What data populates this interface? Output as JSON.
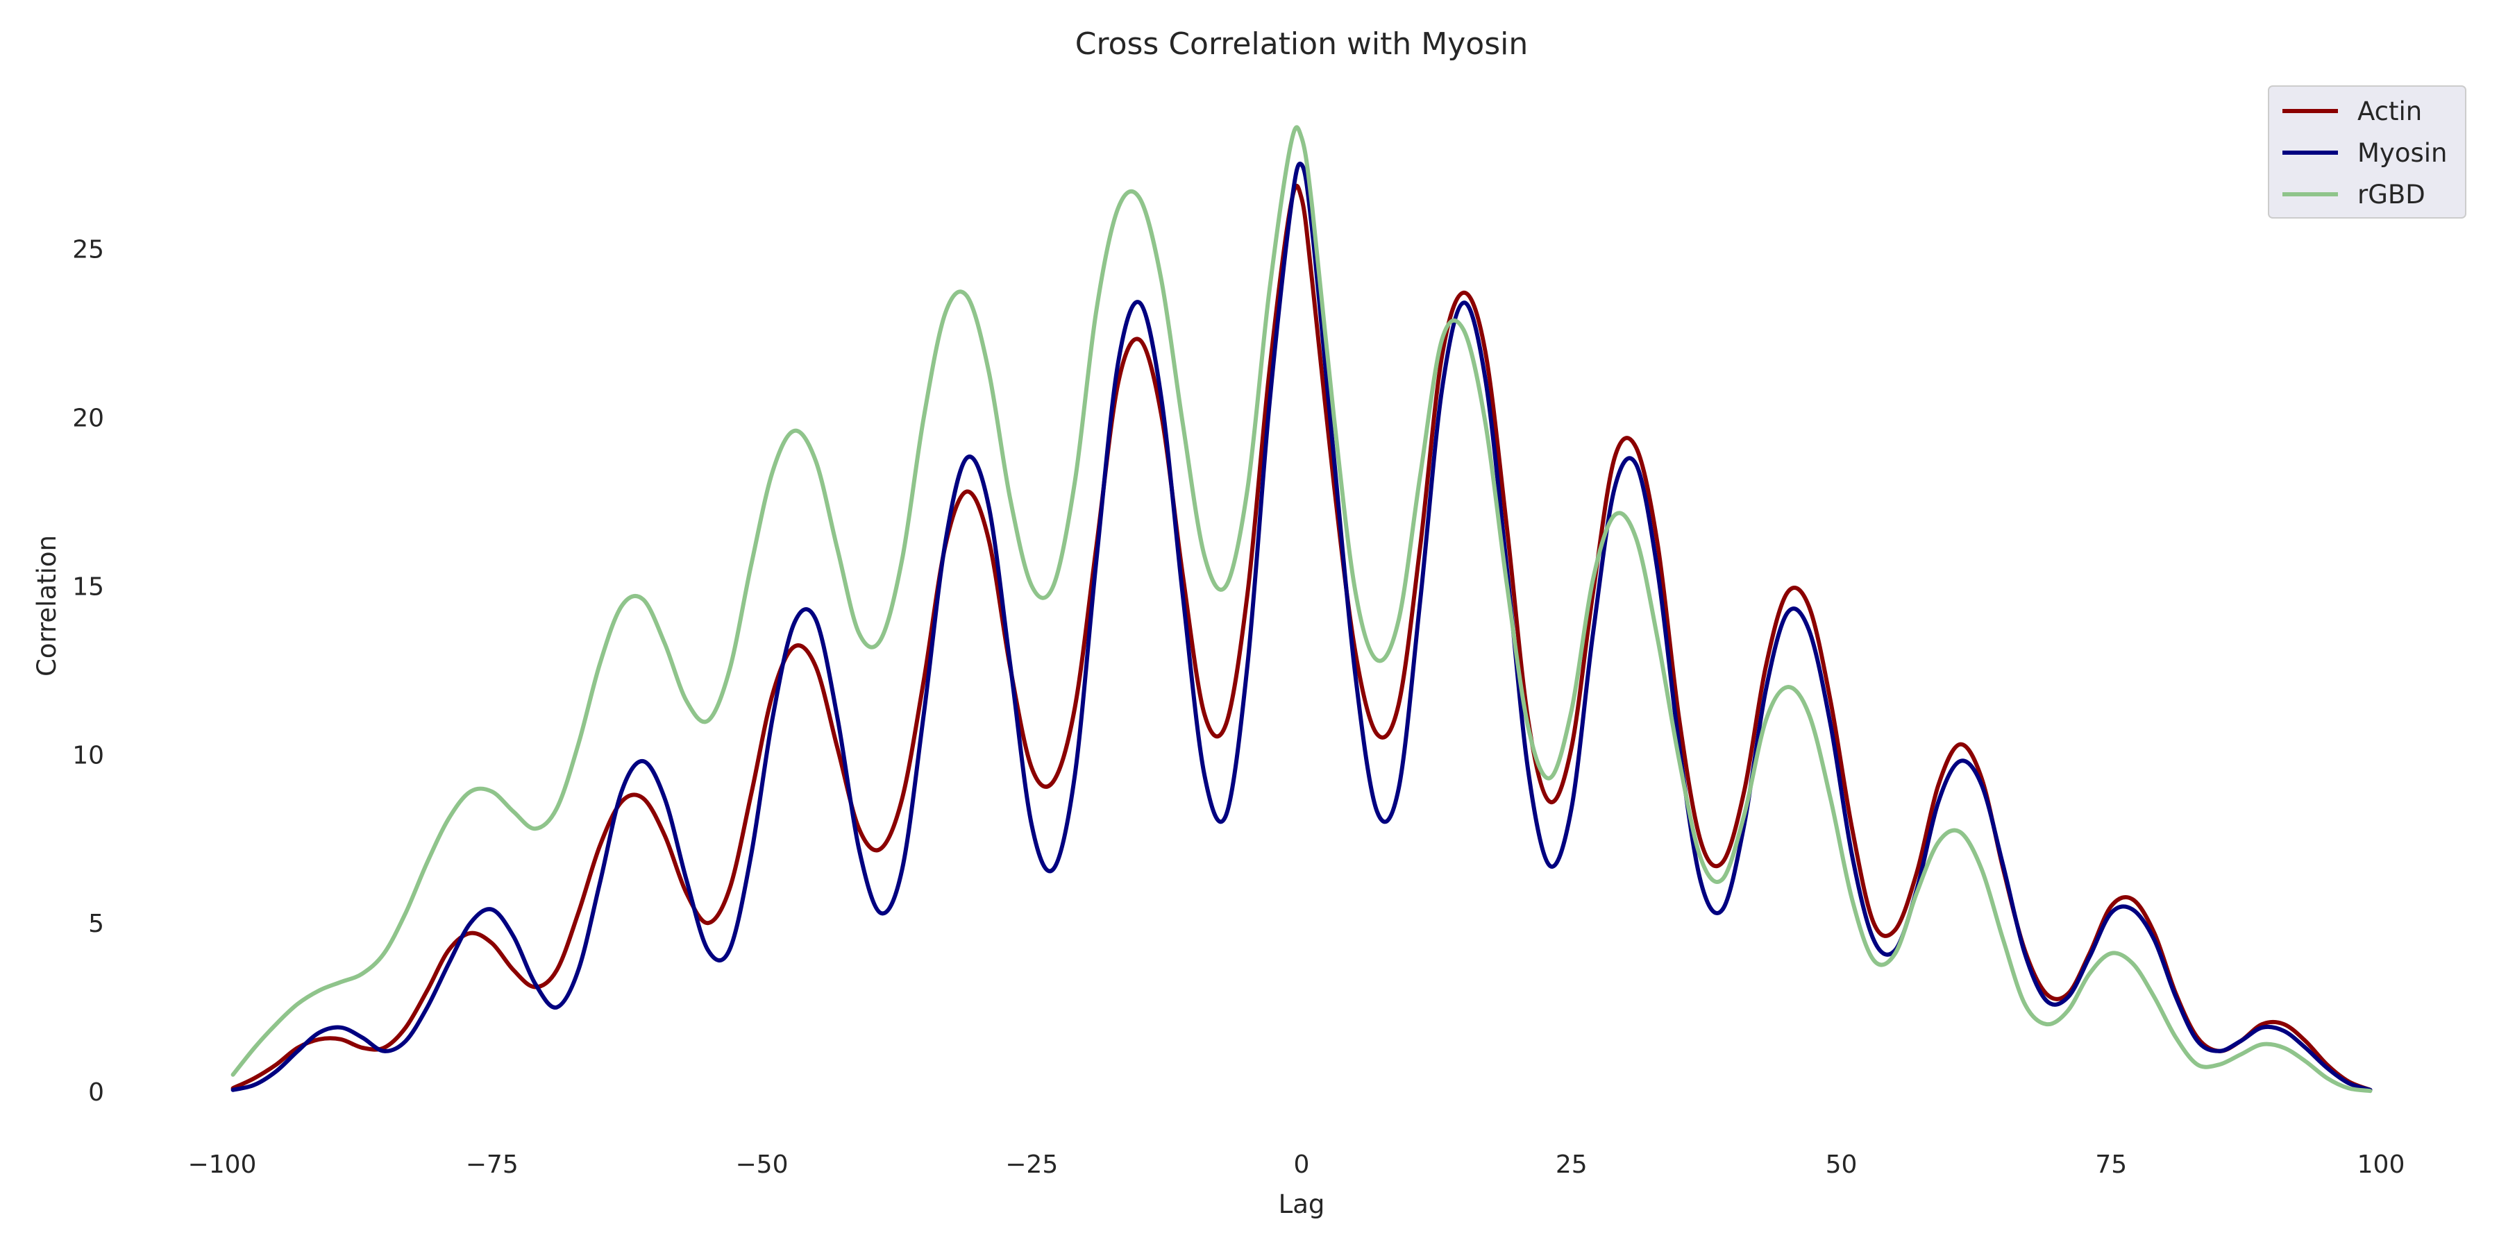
{
  "chart_data": {
    "type": "line",
    "title": "Cross Correlation with Myosin",
    "xlabel": "Lag",
    "ylabel": "Correlation",
    "xlim": [
      -100,
      100
    ],
    "ylim": [
      -1.5,
      29.5
    ],
    "xticks": [
      -100,
      -75,
      -50,
      -25,
      0,
      25,
      50,
      75,
      100
    ],
    "xtick_labels": [
      "−100",
      "−75",
      "−50",
      "−25",
      "0",
      "25",
      "50",
      "75",
      "100"
    ],
    "yticks": [
      0,
      5,
      10,
      15,
      20,
      25
    ],
    "ytick_labels": [
      "0",
      "5",
      "10",
      "15",
      "20",
      "25"
    ],
    "grid": false,
    "legend_position": "top-right",
    "series": [
      {
        "name": "Actin",
        "color": "#8b0000",
        "points": [
          [
            -99,
            0.1
          ],
          [
            -97,
            0.4
          ],
          [
            -95,
            0.8
          ],
          [
            -93,
            1.3
          ],
          [
            -91,
            1.55
          ],
          [
            -89,
            1.55
          ],
          [
            -87,
            1.3
          ],
          [
            -85,
            1.3
          ],
          [
            -83,
            1.9
          ],
          [
            -81,
            3.0
          ],
          [
            -79,
            4.2
          ],
          [
            -77,
            4.7
          ],
          [
            -75,
            4.4
          ],
          [
            -73,
            3.6
          ],
          [
            -71,
            3.1
          ],
          [
            -69,
            3.6
          ],
          [
            -67,
            5.3
          ],
          [
            -65,
            7.3
          ],
          [
            -63,
            8.6
          ],
          [
            -61,
            8.7
          ],
          [
            -59,
            7.6
          ],
          [
            -57,
            5.9
          ],
          [
            -55,
            5.0
          ],
          [
            -53,
            6.0
          ],
          [
            -51,
            8.8
          ],
          [
            -49,
            11.8
          ],
          [
            -47,
            13.2
          ],
          [
            -45,
            12.6
          ],
          [
            -43,
            10.2
          ],
          [
            -41,
            7.8
          ],
          [
            -39,
            7.2
          ],
          [
            -37,
            8.7
          ],
          [
            -35,
            12.2
          ],
          [
            -33,
            16.2
          ],
          [
            -31,
            17.8
          ],
          [
            -29,
            16.4
          ],
          [
            -27,
            12.6
          ],
          [
            -25,
            9.6
          ],
          [
            -23,
            9.2
          ],
          [
            -21,
            11.4
          ],
          [
            -19,
            16.2
          ],
          [
            -17,
            21.0
          ],
          [
            -15,
            22.3
          ],
          [
            -13,
            20.1
          ],
          [
            -11,
            15.3
          ],
          [
            -9,
            11.2
          ],
          [
            -7,
            10.9
          ],
          [
            -5,
            14.8
          ],
          [
            -3,
            21.3
          ],
          [
            -1,
            26.3
          ],
          [
            0,
            26.5
          ],
          [
            1,
            24.0
          ],
          [
            3,
            18.0
          ],
          [
            5,
            13.0
          ],
          [
            7,
            10.6
          ],
          [
            9,
            11.5
          ],
          [
            11,
            16.2
          ],
          [
            13,
            21.8
          ],
          [
            15,
            23.7
          ],
          [
            17,
            22.0
          ],
          [
            19,
            16.8
          ],
          [
            21,
            11.0
          ],
          [
            23,
            8.6
          ],
          [
            25,
            10.2
          ],
          [
            27,
            14.8
          ],
          [
            29,
            18.8
          ],
          [
            31,
            19.1
          ],
          [
            33,
            16.2
          ],
          [
            35,
            11.0
          ],
          [
            37,
            7.4
          ],
          [
            39,
            6.8
          ],
          [
            41,
            8.9
          ],
          [
            43,
            12.6
          ],
          [
            45,
            14.8
          ],
          [
            47,
            14.4
          ],
          [
            49,
            11.6
          ],
          [
            51,
            7.8
          ],
          [
            53,
            5.0
          ],
          [
            55,
            4.8
          ],
          [
            57,
            6.5
          ],
          [
            59,
            9.1
          ],
          [
            61,
            10.3
          ],
          [
            63,
            9.3
          ],
          [
            65,
            6.6
          ],
          [
            67,
            4.2
          ],
          [
            69,
            2.9
          ],
          [
            71,
            2.9
          ],
          [
            73,
            4.1
          ],
          [
            75,
            5.5
          ],
          [
            77,
            5.7
          ],
          [
            79,
            4.7
          ],
          [
            81,
            2.9
          ],
          [
            83,
            1.6
          ],
          [
            85,
            1.2
          ],
          [
            87,
            1.5
          ],
          [
            89,
            2.0
          ],
          [
            91,
            2.0
          ],
          [
            93,
            1.5
          ],
          [
            95,
            0.8
          ],
          [
            97,
            0.3
          ],
          [
            99,
            0.05
          ]
        ]
      },
      {
        "name": "Myosin",
        "color": "#000080",
        "points": [
          [
            -99,
            0.05
          ],
          [
            -97,
            0.2
          ],
          [
            -95,
            0.6
          ],
          [
            -93,
            1.2
          ],
          [
            -91,
            1.75
          ],
          [
            -89,
            1.9
          ],
          [
            -87,
            1.6
          ],
          [
            -85,
            1.2
          ],
          [
            -83,
            1.5
          ],
          [
            -81,
            2.5
          ],
          [
            -79,
            3.8
          ],
          [
            -77,
            5.0
          ],
          [
            -75,
            5.4
          ],
          [
            -73,
            4.6
          ],
          [
            -71,
            3.2
          ],
          [
            -69,
            2.5
          ],
          [
            -67,
            3.6
          ],
          [
            -65,
            6.2
          ],
          [
            -63,
            8.9
          ],
          [
            -61,
            9.8
          ],
          [
            -59,
            8.7
          ],
          [
            -57,
            6.3
          ],
          [
            -55,
            4.2
          ],
          [
            -53,
            4.2
          ],
          [
            -51,
            7.0
          ],
          [
            -49,
            11.1
          ],
          [
            -47,
            13.9
          ],
          [
            -45,
            14.0
          ],
          [
            -43,
            11.1
          ],
          [
            -41,
            7.2
          ],
          [
            -39,
            5.3
          ],
          [
            -37,
            6.6
          ],
          [
            -35,
            11.2
          ],
          [
            -33,
            16.3
          ],
          [
            -31,
            18.8
          ],
          [
            -29,
            17.4
          ],
          [
            -27,
            12.7
          ],
          [
            -25,
            7.9
          ],
          [
            -23,
            6.6
          ],
          [
            -21,
            9.4
          ],
          [
            -19,
            15.8
          ],
          [
            -17,
            21.6
          ],
          [
            -15,
            23.4
          ],
          [
            -13,
            20.6
          ],
          [
            -11,
            14.7
          ],
          [
            -9,
            9.4
          ],
          [
            -7,
            8.2
          ],
          [
            -5,
            12.7
          ],
          [
            -3,
            20.3
          ],
          [
            -1,
            26.2
          ],
          [
            0,
            27.5
          ],
          [
            1,
            25.5
          ],
          [
            3,
            18.8
          ],
          [
            5,
            12.3
          ],
          [
            7,
            8.3
          ],
          [
            9,
            9.0
          ],
          [
            11,
            14.6
          ],
          [
            13,
            20.8
          ],
          [
            15,
            23.4
          ],
          [
            17,
            21.2
          ],
          [
            19,
            15.6
          ],
          [
            21,
            9.5
          ],
          [
            23,
            6.7
          ],
          [
            25,
            8.4
          ],
          [
            27,
            13.6
          ],
          [
            29,
            17.9
          ],
          [
            31,
            18.6
          ],
          [
            33,
            15.4
          ],
          [
            35,
            10.2
          ],
          [
            37,
            6.2
          ],
          [
            39,
            5.4
          ],
          [
            41,
            7.9
          ],
          [
            43,
            11.9
          ],
          [
            45,
            14.2
          ],
          [
            47,
            13.7
          ],
          [
            49,
            10.9
          ],
          [
            51,
            7.0
          ],
          [
            53,
            4.5
          ],
          [
            55,
            4.2
          ],
          [
            57,
            6.0
          ],
          [
            59,
            8.6
          ],
          [
            61,
            9.8
          ],
          [
            63,
            9.1
          ],
          [
            65,
            6.7
          ],
          [
            67,
            4.1
          ],
          [
            69,
            2.7
          ],
          [
            71,
            2.8
          ],
          [
            73,
            4.0
          ],
          [
            75,
            5.3
          ],
          [
            77,
            5.4
          ],
          [
            79,
            4.5
          ],
          [
            81,
            2.8
          ],
          [
            83,
            1.5
          ],
          [
            85,
            1.2
          ],
          [
            87,
            1.5
          ],
          [
            89,
            1.9
          ],
          [
            91,
            1.8
          ],
          [
            93,
            1.3
          ],
          [
            95,
            0.7
          ],
          [
            97,
            0.25
          ],
          [
            99,
            0.05
          ]
        ]
      },
      {
        "name": "rGBD",
        "color": "#8fc48b",
        "points": [
          [
            -99,
            0.5
          ],
          [
            -97,
            1.3
          ],
          [
            -95,
            2.0
          ],
          [
            -93,
            2.6
          ],
          [
            -91,
            3.0
          ],
          [
            -89,
            3.25
          ],
          [
            -87,
            3.5
          ],
          [
            -85,
            4.1
          ],
          [
            -83,
            5.3
          ],
          [
            -81,
            6.8
          ],
          [
            -79,
            8.1
          ],
          [
            -77,
            8.9
          ],
          [
            -75,
            8.9
          ],
          [
            -73,
            8.3
          ],
          [
            -71,
            7.8
          ],
          [
            -69,
            8.4
          ],
          [
            -67,
            10.3
          ],
          [
            -65,
            12.7
          ],
          [
            -63,
            14.4
          ],
          [
            -61,
            14.6
          ],
          [
            -59,
            13.3
          ],
          [
            -57,
            11.6
          ],
          [
            -55,
            11.0
          ],
          [
            -53,
            12.5
          ],
          [
            -51,
            15.6
          ],
          [
            -49,
            18.4
          ],
          [
            -47,
            19.6
          ],
          [
            -45,
            18.7
          ],
          [
            -43,
            16.1
          ],
          [
            -41,
            13.6
          ],
          [
            -39,
            13.4
          ],
          [
            -37,
            15.8
          ],
          [
            -35,
            20.0
          ],
          [
            -33,
            23.1
          ],
          [
            -31,
            23.6
          ],
          [
            -29,
            21.4
          ],
          [
            -27,
            17.6
          ],
          [
            -25,
            15.0
          ],
          [
            -23,
            15.0
          ],
          [
            -21,
            18.1
          ],
          [
            -19,
            23.2
          ],
          [
            -17,
            26.2
          ],
          [
            -15,
            26.5
          ],
          [
            -13,
            24.1
          ],
          [
            -11,
            19.8
          ],
          [
            -9,
            15.9
          ],
          [
            -7,
            15.0
          ],
          [
            -5,
            17.9
          ],
          [
            -3,
            23.7
          ],
          [
            -1,
            28.1
          ],
          [
            0,
            28.3
          ],
          [
            1,
            26.2
          ],
          [
            3,
            20.0
          ],
          [
            5,
            14.8
          ],
          [
            7,
            12.8
          ],
          [
            9,
            14.0
          ],
          [
            11,
            18.3
          ],
          [
            13,
            22.3
          ],
          [
            15,
            22.6
          ],
          [
            17,
            19.9
          ],
          [
            19,
            15.1
          ],
          [
            21,
            10.8
          ],
          [
            23,
            9.3
          ],
          [
            25,
            11.3
          ],
          [
            27,
            15.2
          ],
          [
            29,
            17.1
          ],
          [
            31,
            16.4
          ],
          [
            33,
            13.4
          ],
          [
            35,
            9.8
          ],
          [
            37,
            6.9
          ],
          [
            39,
            6.3
          ],
          [
            41,
            8.2
          ],
          [
            43,
            11.0
          ],
          [
            45,
            12.0
          ],
          [
            47,
            11.2
          ],
          [
            49,
            8.7
          ],
          [
            51,
            5.7
          ],
          [
            53,
            3.9
          ],
          [
            55,
            4.1
          ],
          [
            57,
            5.9
          ],
          [
            59,
            7.4
          ],
          [
            61,
            7.7
          ],
          [
            63,
            6.6
          ],
          [
            65,
            4.5
          ],
          [
            67,
            2.6
          ],
          [
            69,
            2.0
          ],
          [
            71,
            2.4
          ],
          [
            73,
            3.5
          ],
          [
            75,
            4.1
          ],
          [
            77,
            3.8
          ],
          [
            79,
            2.8
          ],
          [
            81,
            1.6
          ],
          [
            83,
            0.8
          ],
          [
            85,
            0.8
          ],
          [
            87,
            1.1
          ],
          [
            89,
            1.4
          ],
          [
            91,
            1.3
          ],
          [
            93,
            0.9
          ],
          [
            95,
            0.4
          ],
          [
            97,
            0.1
          ],
          [
            99,
            0.02
          ]
        ]
      }
    ]
  }
}
